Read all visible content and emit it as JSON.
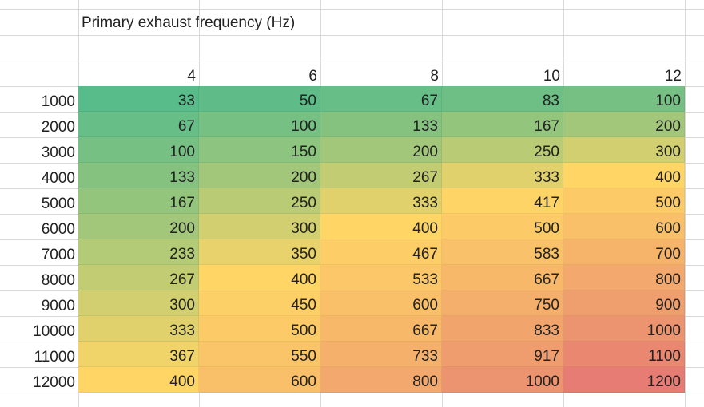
{
  "title": "Primary exhaust frequency (Hz)",
  "frequencies": [
    "4",
    "6",
    "8",
    "10",
    "12"
  ],
  "rows": [
    {
      "label": "1000",
      "values": [
        "33",
        "50",
        "67",
        "83",
        "100"
      ]
    },
    {
      "label": "2000",
      "values": [
        "67",
        "100",
        "133",
        "167",
        "200"
      ]
    },
    {
      "label": "3000",
      "values": [
        "100",
        "150",
        "200",
        "250",
        "300"
      ]
    },
    {
      "label": "4000",
      "values": [
        "133",
        "200",
        "267",
        "333",
        "400"
      ]
    },
    {
      "label": "5000",
      "values": [
        "167",
        "250",
        "333",
        "417",
        "500"
      ]
    },
    {
      "label": "6000",
      "values": [
        "200",
        "300",
        "400",
        "500",
        "600"
      ]
    },
    {
      "label": "7000",
      "values": [
        "233",
        "350",
        "467",
        "583",
        "700"
      ]
    },
    {
      "label": "8000",
      "values": [
        "267",
        "400",
        "533",
        "667",
        "800"
      ]
    },
    {
      "label": "9000",
      "values": [
        "300",
        "450",
        "600",
        "750",
        "900"
      ]
    },
    {
      "label": "10000",
      "values": [
        "333",
        "500",
        "667",
        "833",
        "1000"
      ]
    },
    {
      "label": "11000",
      "values": [
        "367",
        "550",
        "733",
        "917",
        "1100"
      ]
    },
    {
      "label": "12000",
      "values": [
        "400",
        "600",
        "800",
        "1000",
        "1200"
      ]
    }
  ],
  "color_scale": {
    "min": "#57bb8a",
    "mid": "#ffd666",
    "max": "#e67c73",
    "midpoint": 400
  }
}
